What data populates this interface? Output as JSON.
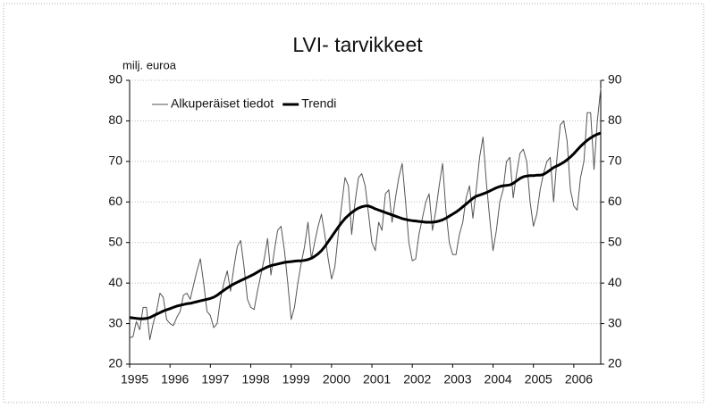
{
  "chart_data": {
    "type": "line",
    "title": "LVI- tarvikkeet",
    "y_label": "milj. euroa",
    "categories": [
      "1995",
      null,
      null,
      null,
      null,
      null,
      null,
      null,
      null,
      null,
      null,
      null,
      "1996",
      null,
      null,
      null,
      null,
      null,
      null,
      null,
      null,
      null,
      null,
      null,
      "1997",
      null,
      null,
      null,
      null,
      null,
      null,
      null,
      null,
      null,
      null,
      null,
      "1998",
      null,
      null,
      null,
      null,
      null,
      null,
      null,
      null,
      null,
      null,
      null,
      "1999",
      null,
      null,
      null,
      null,
      null,
      null,
      null,
      null,
      null,
      null,
      null,
      "2000",
      null,
      null,
      null,
      null,
      null,
      null,
      null,
      null,
      null,
      null,
      null,
      "2001",
      null,
      null,
      null,
      null,
      null,
      null,
      null,
      null,
      null,
      null,
      null,
      "2002",
      null,
      null,
      null,
      null,
      null,
      null,
      null,
      null,
      null,
      null,
      null,
      "2003",
      null,
      null,
      null,
      null,
      null,
      null,
      null,
      null,
      null,
      null,
      null,
      "2004",
      null,
      null,
      null,
      null,
      null,
      null,
      null,
      null,
      null,
      null,
      null,
      "2005",
      null,
      null,
      null,
      null,
      null,
      null,
      null,
      null,
      null,
      null,
      null,
      "2006",
      null,
      null,
      null,
      null,
      null,
      null,
      null,
      null
    ],
    "series": [
      {
        "name": "Alkuperäiset tiedot",
        "color": "#555555",
        "width": 1,
        "values": [
          26.5,
          26.8,
          30.5,
          28.5,
          34,
          34,
          26,
          30,
          33,
          37.5,
          36.5,
          31,
          30,
          29.5,
          31.5,
          33,
          37,
          37.5,
          36,
          39.5,
          43,
          46,
          40,
          33,
          32,
          29,
          30,
          36,
          40,
          43,
          38,
          44,
          49,
          50.5,
          44,
          36,
          34,
          33.5,
          38,
          42,
          46,
          51,
          42,
          48,
          53,
          54,
          48,
          40,
          31,
          34,
          40,
          45,
          49,
          55,
          46,
          50,
          54,
          57,
          52,
          46,
          41,
          44,
          52,
          59,
          66,
          64,
          52,
          60,
          66,
          67,
          64,
          57,
          50,
          48,
          55,
          53,
          62,
          63,
          55,
          61,
          66,
          69.5,
          60,
          50,
          45.5,
          46,
          52,
          56,
          60,
          62,
          53,
          58,
          64,
          69.5,
          58,
          50,
          47,
          47,
          52,
          55,
          61,
          64,
          56,
          63,
          71,
          76,
          65,
          56,
          48,
          53,
          60,
          63,
          70,
          71,
          61,
          67,
          72,
          73,
          70,
          60,
          54,
          57,
          63,
          67,
          70,
          71,
          60,
          71,
          79,
          80,
          75,
          63,
          59,
          58,
          66,
          70,
          82,
          82,
          68,
          80,
          88
        ]
      },
      {
        "name": "Trendi",
        "color": "#000000",
        "width": 3,
        "values": [
          31.5,
          31.4,
          31.3,
          31.2,
          31.2,
          31.3,
          31.5,
          31.9,
          32.3,
          32.7,
          33.1,
          33.4,
          33.7,
          34.0,
          34.3,
          34.5,
          34.7,
          34.9,
          35.0,
          35.2,
          35.4,
          35.6,
          35.8,
          36.0,
          36.2,
          36.5,
          37.0,
          37.6,
          38.2,
          38.8,
          39.3,
          39.8,
          40.2,
          40.6,
          41.0,
          41.4,
          41.8,
          42.2,
          42.7,
          43.2,
          43.6,
          44.0,
          44.3,
          44.5,
          44.7,
          44.9,
          45.1,
          45.2,
          45.3,
          45.4,
          45.5,
          45.5,
          45.6,
          45.8,
          46.1,
          46.6,
          47.2,
          48.0,
          49.0,
          50.2,
          51.4,
          52.6,
          53.8,
          54.9,
          55.9,
          56.7,
          57.4,
          58.0,
          58.5,
          58.8,
          59.0,
          59.0,
          58.7,
          58.3,
          58.0,
          57.7,
          57.4,
          57.1,
          56.8,
          56.5,
          56.2,
          55.9,
          55.7,
          55.5,
          55.4,
          55.3,
          55.2,
          55.1,
          55.0,
          55.0,
          55.0,
          55.1,
          55.3,
          55.6,
          56.0,
          56.5,
          57.0,
          57.5,
          58.1,
          58.8,
          59.5,
          60.2,
          60.9,
          61.4,
          61.7,
          62.0,
          62.3,
          62.7,
          63.1,
          63.5,
          63.8,
          64.0,
          64.1,
          64.2,
          64.6,
          65.2,
          65.8,
          66.2,
          66.4,
          66.5,
          66.5,
          66.6,
          66.6,
          66.8,
          67.3,
          67.9,
          68.5,
          68.9,
          69.3,
          69.8,
          70.4,
          71.1,
          71.9,
          72.8,
          73.7,
          74.5,
          75.2,
          75.8,
          76.3,
          76.7,
          77.0
        ]
      }
    ],
    "ylim": [
      20,
      90
    ],
    "yticks": [
      20,
      30,
      40,
      50,
      60,
      70,
      80,
      90
    ],
    "y2lim": [
      20,
      90
    ],
    "y2ticks": [
      20,
      30,
      40,
      50,
      60,
      70,
      80,
      90
    ],
    "grid": true,
    "legend": "upper left"
  }
}
